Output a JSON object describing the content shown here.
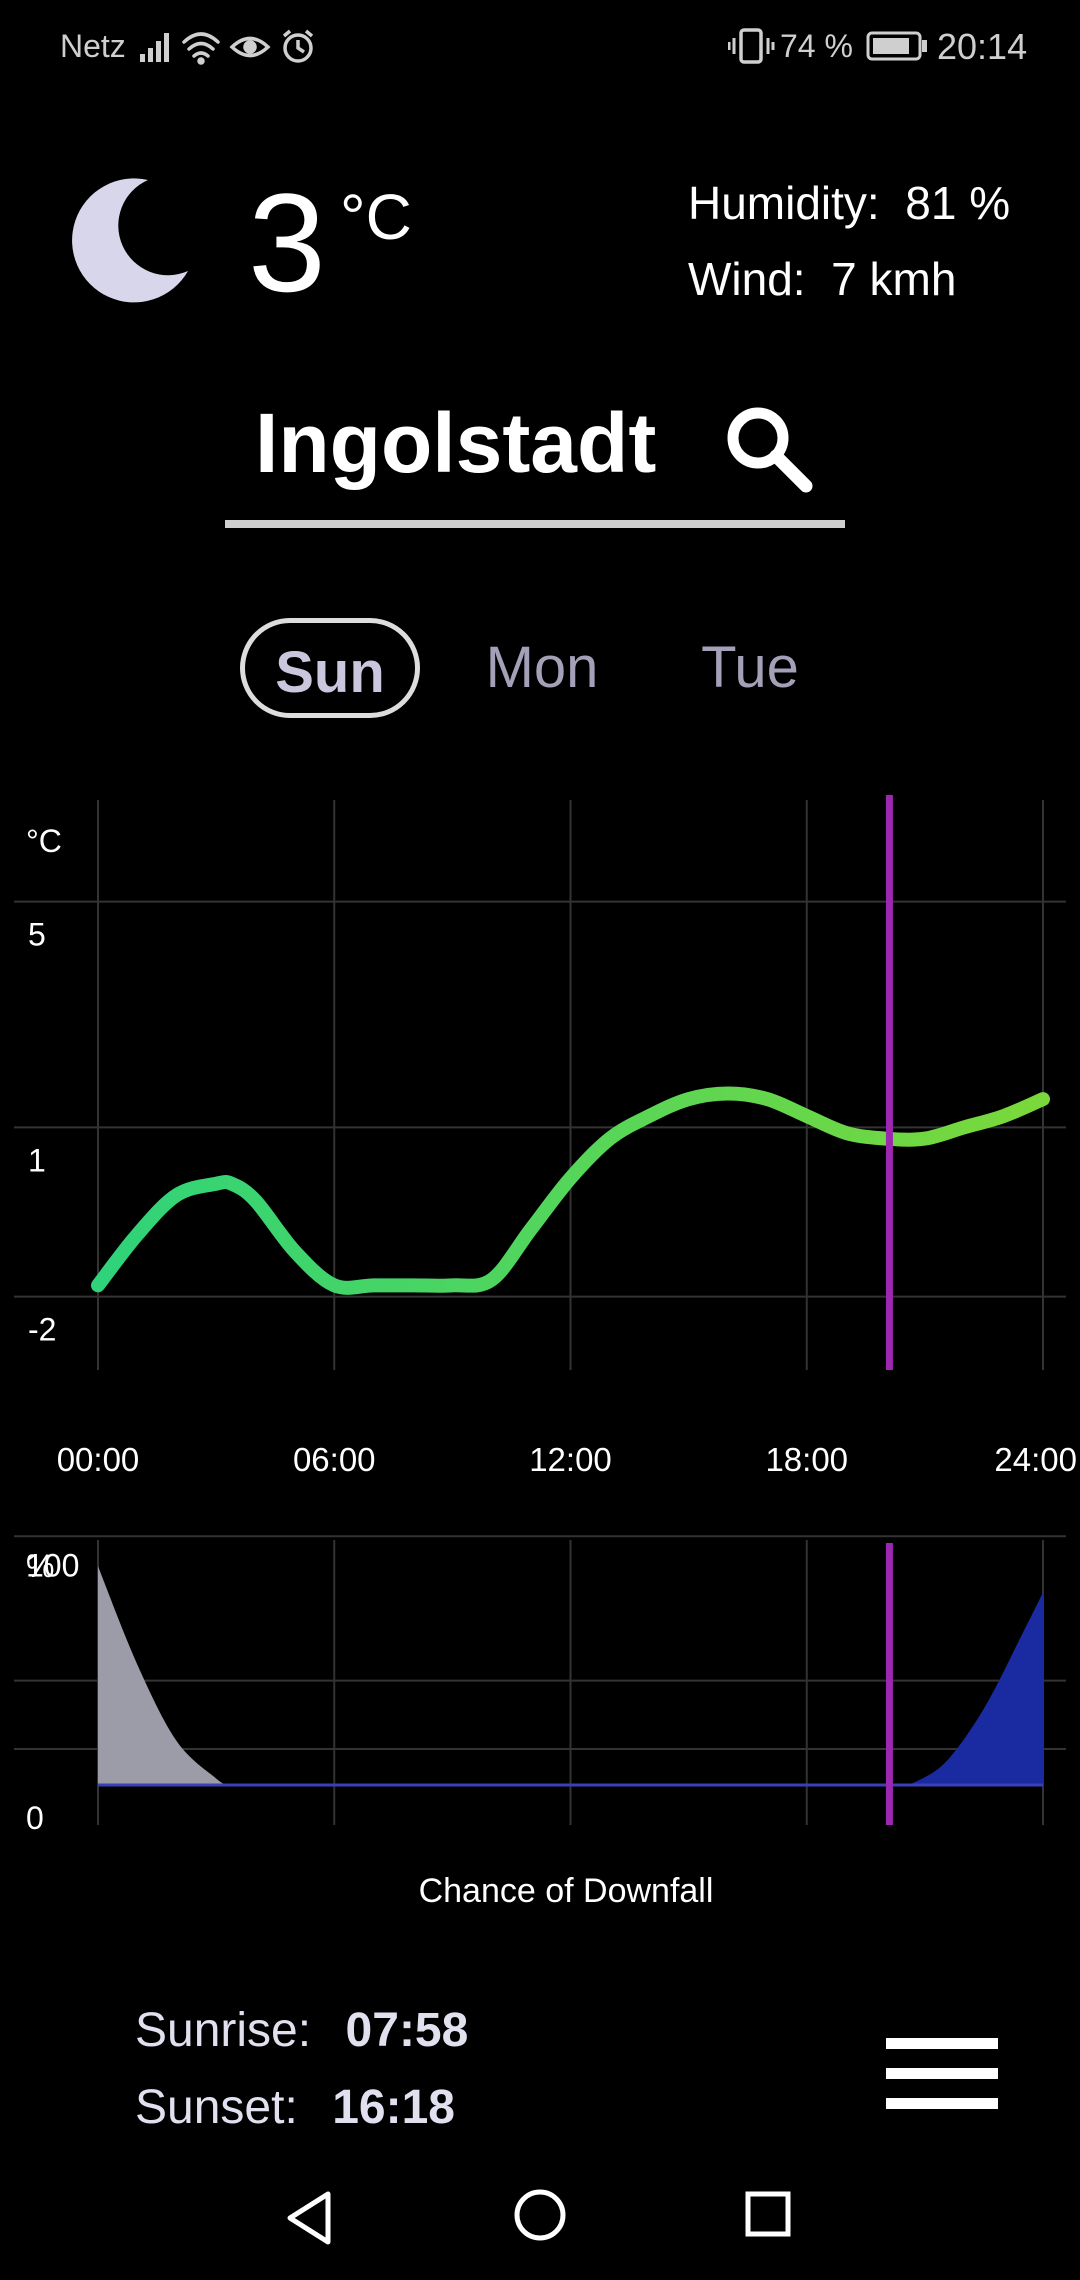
{
  "status_bar": {
    "carrier": "Netz",
    "battery": "74 %",
    "time": "20:14",
    "icons": [
      "signal-icon",
      "wifi-icon",
      "eye-icon",
      "alarm-icon",
      "vibrate-icon",
      "battery-icon"
    ]
  },
  "current": {
    "icon": "moon-icon",
    "temperature": "3",
    "unit": "°C",
    "humidity_label": "Humidity:",
    "humidity_value": "81 %",
    "wind_label": "Wind:",
    "wind_value": "7 kmh"
  },
  "search": {
    "city": "Ingolstadt",
    "icon": "search-icon"
  },
  "days": [
    {
      "label": "Sun",
      "selected": true
    },
    {
      "label": "Mon",
      "selected": false
    },
    {
      "label": "Tue",
      "selected": false
    }
  ],
  "chart_data": [
    {
      "type": "line",
      "ylabel": "°C",
      "ylim": [
        -3.3,
        6.8
      ],
      "y_ticks": [
        "5",
        "1",
        "-2"
      ],
      "y_tick_values": [
        5,
        1,
        -2
      ],
      "x_ticks": [
        "00:00",
        "06:00",
        "12:00",
        "18:00",
        "24:00"
      ],
      "x_tick_values": [
        0,
        6,
        12,
        18,
        24
      ],
      "xlim": [
        0,
        24
      ],
      "current_hour": 20.1,
      "grid": true,
      "colors": {
        "line_start": "#2fd37a",
        "line_end": "#7ad83a",
        "marker": "#9c27b0",
        "grid": "#333333"
      },
      "series": [
        {
          "x": [
            0,
            1,
            2,
            3,
            3.4,
            4,
            5,
            6,
            7,
            8,
            9,
            10,
            11,
            12,
            13,
            14,
            15,
            16,
            17,
            18,
            19,
            20,
            21,
            22,
            23,
            24
          ],
          "y": [
            -1.8,
            -0.9,
            -0.2,
            0.0,
            0.0,
            -0.3,
            -1.2,
            -1.8,
            -1.8,
            -1.8,
            -1.8,
            -1.7,
            -0.8,
            0.1,
            0.8,
            1.2,
            1.5,
            1.6,
            1.5,
            1.2,
            0.9,
            0.8,
            0.8,
            1.0,
            1.2,
            1.5
          ]
        }
      ]
    },
    {
      "type": "area",
      "title": "Chance of Downfall",
      "ylabel": "%",
      "ylim": [
        0,
        112
      ],
      "y_ticks": [
        "100",
        "0"
      ],
      "y_tick_values": [
        100,
        0
      ],
      "xlim": [
        0,
        24
      ],
      "current_hour": 20.1,
      "grid": true,
      "colors": {
        "area_left": "#9c9ca8",
        "area_right": "#1a2aa0",
        "baseline": "#3b3fb8",
        "marker": "#9c27b0"
      },
      "series": [
        {
          "x": [
            0,
            1,
            2,
            3,
            3.3
          ],
          "y": [
            100,
            55,
            20,
            3,
            0
          ],
          "color": "#9c9ca8"
        },
        {
          "x": [
            20.6,
            21.5,
            22.5,
            23.5,
            24
          ],
          "y": [
            0,
            10,
            35,
            70,
            88
          ],
          "color": "#1a2aa0"
        }
      ]
    }
  ],
  "sun": {
    "sunrise_label": "Sunrise:",
    "sunrise_time": "07:58",
    "sunset_label": "Sunset:",
    "sunset_time": "16:18"
  },
  "menu": {
    "icon": "hamburger-menu-icon"
  },
  "nav": {
    "back": "back-icon",
    "home": "home-icon",
    "recents": "recents-icon"
  }
}
